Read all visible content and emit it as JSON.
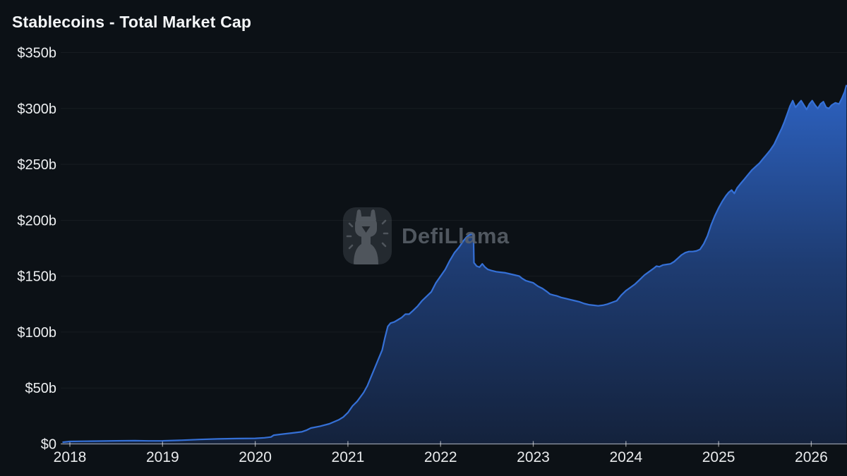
{
  "header": {
    "title": "Stablecoins - Total Market Cap"
  },
  "watermark": {
    "brand": "DefiLlama"
  },
  "colors": {
    "background": "#0c1116",
    "line": "#3570d6",
    "area_gradient": [
      "#2d62c1",
      "#1e3c72",
      "#14223c"
    ],
    "grid": "rgba(255,255,255,0.05)",
    "axis": "rgba(255,255,255,0.55)",
    "y_label": "#edeff1",
    "x_label": "#e8eaec",
    "watermark_gray": "#868d94"
  },
  "chart_data": {
    "type": "area",
    "title": "Stablecoins - Total Market Cap",
    "xlabel": "",
    "ylabel": "",
    "unit": "USD billions",
    "grid": "horizontal-faint",
    "legend": "none",
    "x_range": [
      2017.9,
      2026.4
    ],
    "y_range": [
      0,
      350
    ],
    "x_ticks": [
      {
        "value": 2018,
        "label": "2018"
      },
      {
        "value": 2019,
        "label": "2019"
      },
      {
        "value": 2020,
        "label": "2020"
      },
      {
        "value": 2021,
        "label": "2021"
      },
      {
        "value": 2022,
        "label": "2022"
      },
      {
        "value": 2023,
        "label": "2023"
      },
      {
        "value": 2024,
        "label": "2024"
      },
      {
        "value": 2025,
        "label": "2025"
      },
      {
        "value": 2026,
        "label": "2026"
      }
    ],
    "y_ticks": [
      {
        "value": 0,
        "label": "$0"
      },
      {
        "value": 50,
        "label": "$50b"
      },
      {
        "value": 100,
        "label": "$100b"
      },
      {
        "value": 150,
        "label": "$150b"
      },
      {
        "value": 200,
        "label": "$200b"
      },
      {
        "value": 250,
        "label": "$250b"
      },
      {
        "value": 300,
        "label": "$300b"
      },
      {
        "value": 350,
        "label": "$350b"
      }
    ],
    "series": [
      {
        "name": "Total Stablecoins Market Cap ($b)",
        "points": [
          [
            2017.92,
            1.5
          ],
          [
            2018.0,
            2.2
          ],
          [
            2018.15,
            2.4
          ],
          [
            2018.3,
            2.5
          ],
          [
            2018.5,
            2.8
          ],
          [
            2018.7,
            2.9
          ],
          [
            2018.85,
            2.7
          ],
          [
            2019.0,
            2.8
          ],
          [
            2019.2,
            3.3
          ],
          [
            2019.4,
            4.0
          ],
          [
            2019.6,
            4.5
          ],
          [
            2019.8,
            4.8
          ],
          [
            2020.0,
            5.0
          ],
          [
            2020.1,
            5.5
          ],
          [
            2020.17,
            6.2
          ],
          [
            2020.2,
            7.8
          ],
          [
            2020.3,
            8.8
          ],
          [
            2020.4,
            9.8
          ],
          [
            2020.5,
            10.8
          ],
          [
            2020.55,
            12.2
          ],
          [
            2020.6,
            14.2
          ],
          [
            2020.7,
            15.8
          ],
          [
            2020.8,
            18.0
          ],
          [
            2020.9,
            21.5
          ],
          [
            2020.95,
            24.0
          ],
          [
            2021.0,
            28.0
          ],
          [
            2021.05,
            34
          ],
          [
            2021.1,
            38
          ],
          [
            2021.17,
            46
          ],
          [
            2021.21,
            52
          ],
          [
            2021.25,
            60
          ],
          [
            2021.29,
            68
          ],
          [
            2021.33,
            76
          ],
          [
            2021.37,
            84
          ],
          [
            2021.4,
            95
          ],
          [
            2021.43,
            105
          ],
          [
            2021.46,
            108
          ],
          [
            2021.5,
            109
          ],
          [
            2021.54,
            111
          ],
          [
            2021.58,
            113
          ],
          [
            2021.62,
            116
          ],
          [
            2021.66,
            116
          ],
          [
            2021.7,
            119
          ],
          [
            2021.75,
            123
          ],
          [
            2021.8,
            128
          ],
          [
            2021.85,
            132
          ],
          [
            2021.9,
            136
          ],
          [
            2021.95,
            144
          ],
          [
            2022.0,
            150
          ],
          [
            2022.05,
            156
          ],
          [
            2022.1,
            164
          ],
          [
            2022.15,
            171
          ],
          [
            2022.2,
            176
          ],
          [
            2022.25,
            182
          ],
          [
            2022.28,
            185
          ],
          [
            2022.31,
            187
          ],
          [
            2022.34,
            188
          ],
          [
            2022.355,
            187
          ],
          [
            2022.36,
            162
          ],
          [
            2022.39,
            159
          ],
          [
            2022.42,
            158
          ],
          [
            2022.45,
            161
          ],
          [
            2022.48,
            158
          ],
          [
            2022.51,
            156
          ],
          [
            2022.55,
            155
          ],
          [
            2022.6,
            154
          ],
          [
            2022.65,
            153.5
          ],
          [
            2022.7,
            153
          ],
          [
            2022.75,
            152
          ],
          [
            2022.8,
            151
          ],
          [
            2022.85,
            150
          ],
          [
            2022.88,
            148
          ],
          [
            2022.92,
            146
          ],
          [
            2022.96,
            145
          ],
          [
            2023.0,
            144
          ],
          [
            2023.05,
            141
          ],
          [
            2023.1,
            139
          ],
          [
            2023.15,
            136
          ],
          [
            2023.18,
            134
          ],
          [
            2023.22,
            133
          ],
          [
            2023.25,
            132.5
          ],
          [
            2023.3,
            131
          ],
          [
            2023.35,
            130
          ],
          [
            2023.4,
            129
          ],
          [
            2023.45,
            128
          ],
          [
            2023.5,
            127
          ],
          [
            2023.55,
            125.5
          ],
          [
            2023.6,
            124.5
          ],
          [
            2023.65,
            124
          ],
          [
            2023.7,
            123.5
          ],
          [
            2023.75,
            124
          ],
          [
            2023.8,
            125
          ],
          [
            2023.85,
            126.5
          ],
          [
            2023.9,
            128
          ],
          [
            2023.95,
            133
          ],
          [
            2024.0,
            137
          ],
          [
            2024.05,
            140
          ],
          [
            2024.1,
            143
          ],
          [
            2024.15,
            147
          ],
          [
            2024.2,
            151
          ],
          [
            2024.25,
            154
          ],
          [
            2024.3,
            157
          ],
          [
            2024.33,
            159
          ],
          [
            2024.36,
            158.5
          ],
          [
            2024.4,
            160
          ],
          [
            2024.44,
            160.5
          ],
          [
            2024.48,
            161
          ],
          [
            2024.52,
            163
          ],
          [
            2024.56,
            166
          ],
          [
            2024.6,
            169
          ],
          [
            2024.64,
            171
          ],
          [
            2024.68,
            172
          ],
          [
            2024.72,
            172
          ],
          [
            2024.76,
            172.5
          ],
          [
            2024.8,
            174
          ],
          [
            2024.84,
            179
          ],
          [
            2024.88,
            186
          ],
          [
            2024.92,
            196
          ],
          [
            2024.96,
            204
          ],
          [
            2025.0,
            211
          ],
          [
            2025.04,
            217
          ],
          [
            2025.08,
            222
          ],
          [
            2025.11,
            225
          ],
          [
            2025.14,
            227
          ],
          [
            2025.17,
            224
          ],
          [
            2025.2,
            229
          ],
          [
            2025.24,
            233
          ],
          [
            2025.28,
            237
          ],
          [
            2025.32,
            241
          ],
          [
            2025.36,
            245
          ],
          [
            2025.4,
            248
          ],
          [
            2025.44,
            251
          ],
          [
            2025.48,
            255
          ],
          [
            2025.52,
            259
          ],
          [
            2025.56,
            263
          ],
          [
            2025.6,
            268
          ],
          [
            2025.64,
            275
          ],
          [
            2025.68,
            282
          ],
          [
            2025.71,
            288
          ],
          [
            2025.74,
            295
          ],
          [
            2025.77,
            302
          ],
          [
            2025.8,
            307
          ],
          [
            2025.83,
            301
          ],
          [
            2025.86,
            304
          ],
          [
            2025.89,
            307
          ],
          [
            2025.92,
            303
          ],
          [
            2025.95,
            299
          ],
          [
            2025.98,
            304
          ],
          [
            2026.01,
            307
          ],
          [
            2026.04,
            303
          ],
          [
            2026.07,
            300
          ],
          [
            2026.1,
            304
          ],
          [
            2026.13,
            306
          ],
          [
            2026.16,
            301
          ],
          [
            2026.19,
            300
          ],
          [
            2026.22,
            303
          ],
          [
            2026.26,
            305
          ],
          [
            2026.3,
            304
          ],
          [
            2026.33,
            309
          ],
          [
            2026.36,
            315
          ],
          [
            2026.38,
            321
          ]
        ]
      }
    ]
  }
}
